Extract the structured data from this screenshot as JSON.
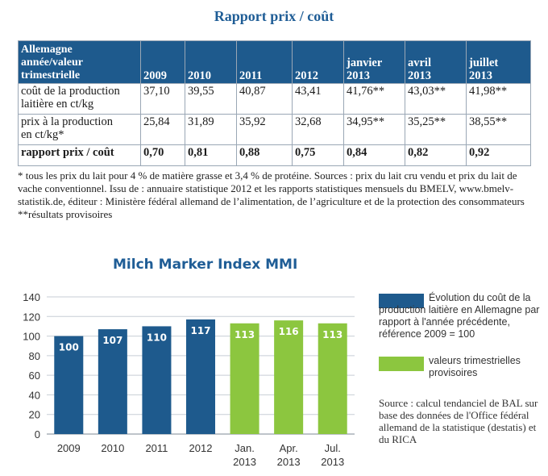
{
  "title": "Rapport prix / coût",
  "table": {
    "header": [
      "Allemagne\nannée/valeur\ntrimestrielle",
      "2009",
      "2010",
      "2011",
      "2012",
      "janvier\n2013",
      "avril\n2013",
      "juillet\n2013"
    ],
    "rows": [
      {
        "label": "coût de la production\nlaitière en ct/kg",
        "values": [
          "37,10",
          "39,55",
          "40,87",
          "43,41",
          "41,76**",
          "43,03**",
          "41,98**"
        ]
      },
      {
        "label": "prix à la production\nen ct/kg*",
        "values": [
          "25,84",
          "31,89",
          "35,92",
          "32,68",
          "34,95**",
          "35,25**",
          "38,55**"
        ]
      },
      {
        "label": "rapport prix / coût",
        "values": [
          "0,70",
          "0,81",
          "0,88",
          "0,75",
          "0,84",
          "0,82",
          "0,92"
        ]
      }
    ]
  },
  "footnote": {
    "line1": "* tous les prix du lait pour 4 % de matière grasse et 3,4 % de protéine. Sources : prix du lait cru vendu et prix du lait de vache conventionnel. Issu de : annuaire statistique 2012 et les rapports statistiques mensuels du BMELV, www.bmelv-statistik.de, éditeur : Ministère fédéral allemand de l’alimentation, de l’agriculture et de la protection des consommateurs",
    "line2": "**résultats provisoires"
  },
  "chart_data": {
    "type": "bar",
    "title": "Milch Marker Index MMI",
    "categories": [
      "2009",
      "2010",
      "2011",
      "2012",
      "Jan.\n2013",
      "Apr.\n2013",
      "Jul.\n2013"
    ],
    "values": [
      100,
      107,
      110,
      117,
      113,
      116,
      113
    ],
    "value_labels": [
      "100",
      "107",
      "110",
      "117",
      "113",
      "116",
      "113"
    ],
    "bar_colors": [
      "#1e5a8d",
      "#1e5a8d",
      "#1e5a8d",
      "#1e5a8d",
      "#8cc63f",
      "#8cc63f",
      "#8cc63f"
    ],
    "yticks": [
      "0",
      "20",
      "40",
      "60",
      "80",
      "100",
      "120",
      "140"
    ],
    "ylim": [
      0,
      140
    ],
    "grid": true,
    "legend": [
      {
        "label": "Évolution du coût de la production laitière en Allemagne par rapport à l'année précédente, référence 2009 = 100",
        "color": "#1e5a8d"
      },
      {
        "label": "valeurs trimestrielles provisoires",
        "color": "#8cc63f"
      }
    ]
  },
  "source": "Source : calcul tendanciel de BAL sur base des données de l'Office fédéral allemand de la statistique (destatis) et du RICA"
}
